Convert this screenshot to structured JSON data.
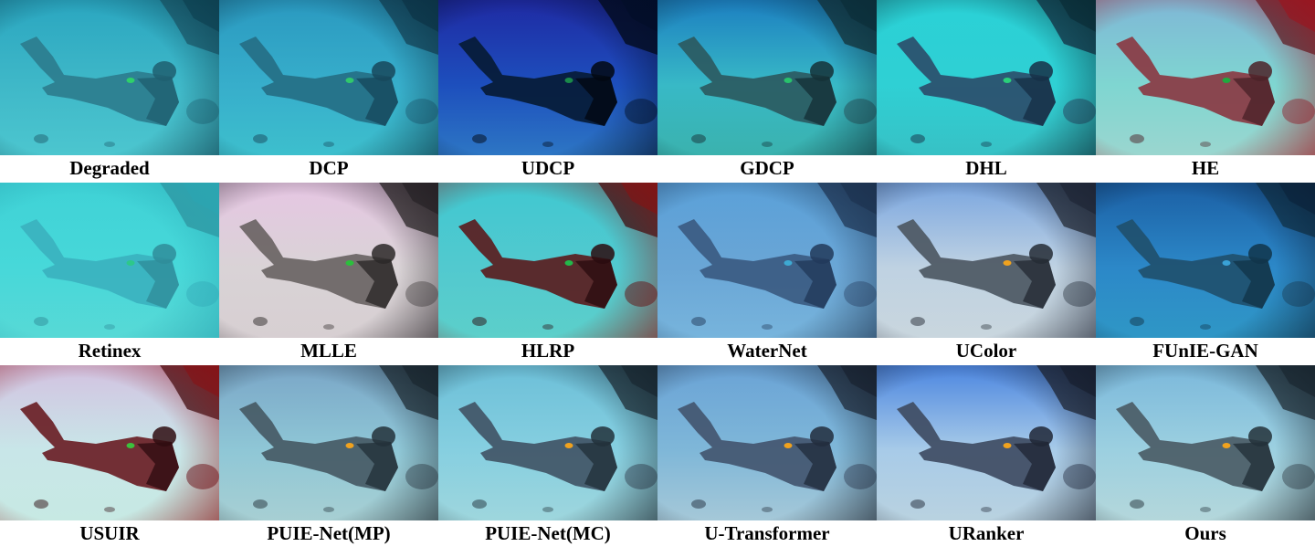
{
  "figure": {
    "panels": [
      {
        "label": "Degraded",
        "colors": {
          "base": "#3fb8c8",
          "top": "#2aa6c0",
          "bottom": "#4cc6cf",
          "object": "#2c7d8e",
          "shadow": "#1f5f70",
          "accent": "#2fd06a",
          "vignette": "#0b3a4a"
        }
      },
      {
        "label": "DCP",
        "colors": {
          "base": "#37aecb",
          "top": "#2a99c0",
          "bottom": "#3dbfcd",
          "object": "#256f86",
          "shadow": "#17485c",
          "accent": "#31c86c",
          "vignette": "#0a2d3f"
        }
      },
      {
        "label": "UDCP",
        "colors": {
          "base": "#1d4fbd",
          "top": "#1f2aa3",
          "bottom": "#2d76c4",
          "object": "#071b36",
          "shadow": "#020812",
          "accent": "#1a8a4a",
          "vignette": "#020d26"
        }
      },
      {
        "label": "GDCP",
        "colors": {
          "base": "#38b9c6",
          "top": "#1c7fc1",
          "bottom": "#3ab2ae",
          "object": "#2b5a61",
          "shadow": "#153137",
          "accent": "#28c26c",
          "vignette": "#0a2a34"
        }
      },
      {
        "label": "DHL",
        "colors": {
          "base": "#2fd0d4",
          "top": "#2ad1d6",
          "bottom": "#37c1c5",
          "object": "#2b4e6b",
          "shadow": "#163046",
          "accent": "#2ad07a",
          "vignette": "#08262f"
        }
      },
      {
        "label": "HE",
        "colors": {
          "base": "#7fd6d1",
          "top": "#7fb7d6",
          "bottom": "#9ad6cf",
          "object": "#8a3a43",
          "shadow": "#4b2228",
          "accent": "#1faa3f",
          "vignette": "#a0101a"
        }
      },
      {
        "label": "Retinex",
        "colors": {
          "base": "#47d8d9",
          "top": "#3fd2d6",
          "bottom": "#57d9d6",
          "object": "#3bb2bf",
          "shadow": "#2f8d9a",
          "accent": "#2dc88a",
          "vignette": "#2aa6b2"
        }
      },
      {
        "label": "MLLE",
        "colors": {
          "base": "#d9d3d6",
          "top": "#e6c6e3",
          "bottom": "#d7cfd2",
          "object": "#6a6464",
          "shadow": "#2c2828",
          "accent": "#2bbf3c",
          "vignette": "#1f1b1f"
        }
      },
      {
        "label": "HLRP",
        "colors": {
          "base": "#52c9cf",
          "top": "#40c8d0",
          "bottom": "#5ccfca",
          "object": "#5a1d1f",
          "shadow": "#2a0c0f",
          "accent": "#23b84a",
          "vignette": "#8a1010"
        }
      },
      {
        "label": "WaterNet",
        "colors": {
          "base": "#6aa6d6",
          "top": "#5aa0d8",
          "bottom": "#77b4dc",
          "object": "#3b5b82",
          "shadow": "#22395a",
          "accent": "#3ea9d2",
          "vignette": "#1a2e4a"
        }
      },
      {
        "label": "UColor",
        "colors": {
          "base": "#bfd2e2",
          "top": "#7aa6e0",
          "bottom": "#c9d6de",
          "object": "#4d5863",
          "shadow": "#252c35",
          "accent": "#f0a21e",
          "vignette": "#1a2030"
        }
      },
      {
        "label": "FUnIE-GAN",
        "colors": {
          "base": "#2c88c8",
          "top": "#1b5fa4",
          "bottom": "#2f97c6",
          "object": "#20506e",
          "shadow": "#11354a",
          "accent": "#3aa2d6",
          "vignette": "#0a1f36"
        }
      },
      {
        "label": "USUIR",
        "colors": {
          "base": "#c8e6e8",
          "top": "#d3c2e1",
          "bottom": "#c7e9e3",
          "object": "#6a1f26",
          "shadow": "#2f0d11",
          "accent": "#3cc13d",
          "vignette": "#8a0f12"
        }
      },
      {
        "label": "PUIE-Net(MP)",
        "colors": {
          "base": "#8fc7d6",
          "top": "#7aa6c7",
          "bottom": "#a7cfd3",
          "object": "#465a65",
          "shadow": "#23313a",
          "accent": "#f0a21e",
          "vignette": "#152028"
        }
      },
      {
        "label": "PUIE-Net(MC)",
        "colors": {
          "base": "#86cfe0",
          "top": "#6cbfd8",
          "bottom": "#9ed6dd",
          "object": "#415566",
          "shadow": "#22313b",
          "accent": "#f0a21e",
          "vignette": "#142029"
        }
      },
      {
        "label": "U-Transformer",
        "colors": {
          "base": "#7fb7d8",
          "top": "#6aa3d6",
          "bottom": "#a5c8d8",
          "object": "#435670",
          "shadow": "#222d3d",
          "accent": "#f0a21e",
          "vignette": "#141c28"
        }
      },
      {
        "label": "URanker",
        "colors": {
          "base": "#a8cbe8",
          "top": "#4c86e0",
          "bottom": "#b9d2e0",
          "object": "#3f4c63",
          "shadow": "#202736",
          "accent": "#f0a21e",
          "vignette": "#141a28"
        }
      },
      {
        "label": "Ours",
        "colors": {
          "base": "#9cd0e0",
          "top": "#7bb8db",
          "bottom": "#b4d7db",
          "object": "#4b5c66",
          "shadow": "#23313a",
          "accent": "#f0a21e",
          "vignette": "#152029"
        }
      }
    ]
  }
}
